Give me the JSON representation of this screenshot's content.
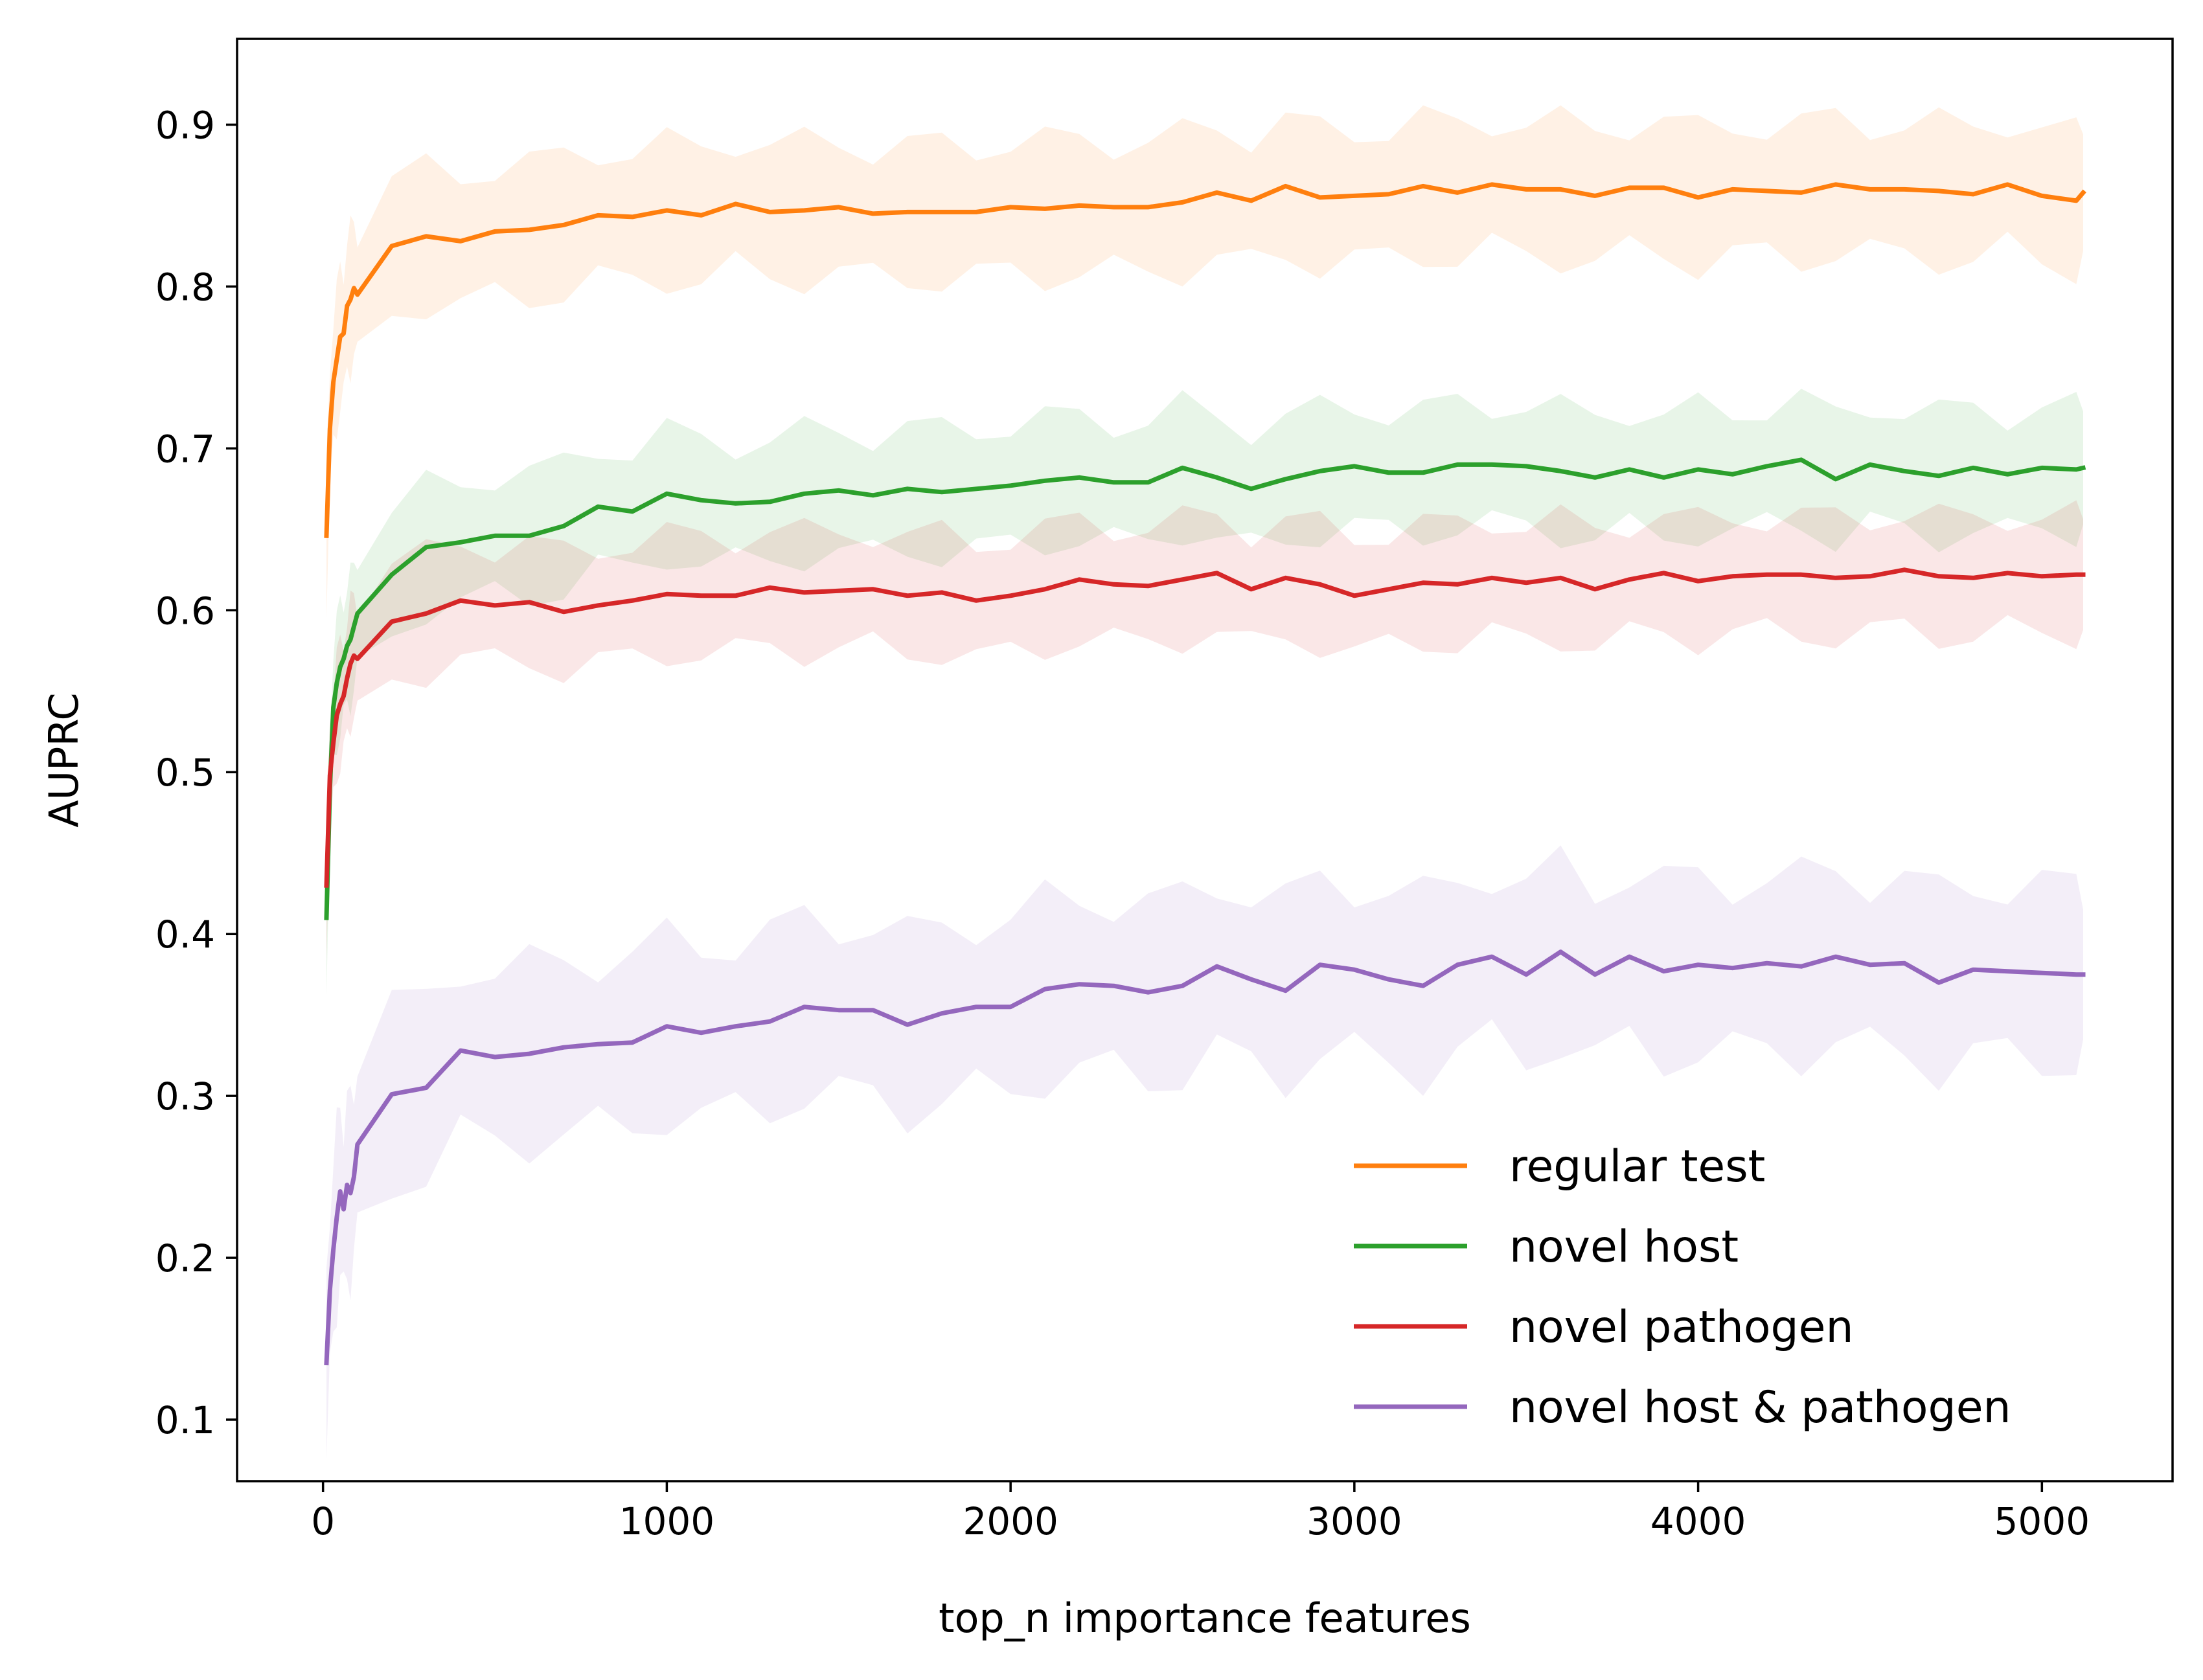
{
  "chart_data": {
    "type": "line",
    "xlabel": "top_n importance features",
    "ylabel": "AUPRC",
    "xlim": [
      -250,
      5380
    ],
    "ylim": [
      0.062,
      0.953
    ],
    "xticks": [
      0,
      1000,
      2000,
      3000,
      4000,
      5000
    ],
    "yticks": [
      0.1,
      0.2,
      0.3,
      0.4,
      0.5,
      0.6,
      0.7,
      0.8,
      0.9
    ],
    "grid": false,
    "legend_position": "lower-right",
    "x": [
      10,
      20,
      30,
      40,
      50,
      60,
      70,
      80,
      90,
      100,
      200,
      300,
      400,
      500,
      600,
      700,
      800,
      900,
      1000,
      1100,
      1200,
      1300,
      1400,
      1500,
      1600,
      1700,
      1800,
      1900,
      2000,
      2100,
      2200,
      2300,
      2400,
      2500,
      2600,
      2700,
      2800,
      2900,
      3000,
      3100,
      3200,
      3300,
      3400,
      3500,
      3600,
      3700,
      3800,
      3900,
      4000,
      4100,
      4200,
      4300,
      4400,
      4500,
      4600,
      4700,
      4800,
      4900,
      5000,
      5100,
      5120
    ],
    "series": [
      {
        "name": "regular test",
        "color": "#ff7f0e",
        "values": [
          0.646,
          0.712,
          0.741,
          0.755,
          0.769,
          0.771,
          0.788,
          0.792,
          0.799,
          0.795,
          0.825,
          0.831,
          0.828,
          0.834,
          0.835,
          0.838,
          0.844,
          0.843,
          0.847,
          0.844,
          0.851,
          0.846,
          0.847,
          0.849,
          0.845,
          0.846,
          0.846,
          0.846,
          0.849,
          0.848,
          0.85,
          0.849,
          0.849,
          0.852,
          0.858,
          0.853,
          0.862,
          0.855,
          0.856,
          0.857,
          0.862,
          0.858,
          0.863,
          0.86,
          0.86,
          0.856,
          0.861,
          0.861,
          0.855,
          0.86,
          0.859,
          0.858,
          0.863,
          0.86,
          0.86,
          0.859,
          0.857,
          0.863,
          0.856,
          0.853,
          0.858
        ],
        "band": 0.052
      },
      {
        "name": "novel host",
        "color": "#2ca02c",
        "values": [
          0.41,
          0.49,
          0.54,
          0.555,
          0.565,
          0.57,
          0.578,
          0.582,
          0.59,
          0.598,
          0.622,
          0.639,
          0.642,
          0.646,
          0.646,
          0.652,
          0.664,
          0.661,
          0.672,
          0.668,
          0.666,
          0.667,
          0.672,
          0.674,
          0.671,
          0.675,
          0.673,
          0.675,
          0.677,
          0.68,
          0.682,
          0.679,
          0.679,
          0.688,
          0.682,
          0.675,
          0.681,
          0.686,
          0.689,
          0.685,
          0.685,
          0.69,
          0.69,
          0.689,
          0.686,
          0.682,
          0.687,
          0.682,
          0.687,
          0.684,
          0.689,
          0.693,
          0.681,
          0.69,
          0.686,
          0.683,
          0.688,
          0.684,
          0.688,
          0.687,
          0.688
        ],
        "band": 0.048
      },
      {
        "name": "novel pathogen",
        "color": "#d62728",
        "values": [
          0.43,
          0.498,
          0.518,
          0.535,
          0.542,
          0.547,
          0.558,
          0.567,
          0.572,
          0.57,
          0.593,
          0.598,
          0.606,
          0.603,
          0.605,
          0.599,
          0.603,
          0.606,
          0.61,
          0.609,
          0.609,
          0.614,
          0.611,
          0.612,
          0.613,
          0.609,
          0.611,
          0.606,
          0.609,
          0.613,
          0.619,
          0.616,
          0.615,
          0.619,
          0.623,
          0.613,
          0.62,
          0.616,
          0.609,
          0.613,
          0.617,
          0.616,
          0.62,
          0.617,
          0.62,
          0.613,
          0.619,
          0.623,
          0.618,
          0.621,
          0.622,
          0.622,
          0.62,
          0.621,
          0.625,
          0.621,
          0.62,
          0.623,
          0.621,
          0.622,
          0.622
        ],
        "band": 0.046
      },
      {
        "name": "novel host & pathogen",
        "color": "#9467bd",
        "values": [
          0.135,
          0.18,
          0.205,
          0.225,
          0.241,
          0.23,
          0.245,
          0.24,
          0.25,
          0.27,
          0.301,
          0.305,
          0.328,
          0.324,
          0.326,
          0.33,
          0.332,
          0.333,
          0.343,
          0.339,
          0.343,
          0.346,
          0.355,
          0.353,
          0.353,
          0.344,
          0.351,
          0.355,
          0.355,
          0.366,
          0.369,
          0.368,
          0.364,
          0.368,
          0.38,
          0.372,
          0.365,
          0.381,
          0.378,
          0.372,
          0.368,
          0.381,
          0.386,
          0.375,
          0.389,
          0.375,
          0.386,
          0.377,
          0.381,
          0.379,
          0.382,
          0.38,
          0.386,
          0.381,
          0.382,
          0.37,
          0.378,
          0.377,
          0.376,
          0.375,
          0.375
        ],
        "band": 0.068
      }
    ]
  }
}
